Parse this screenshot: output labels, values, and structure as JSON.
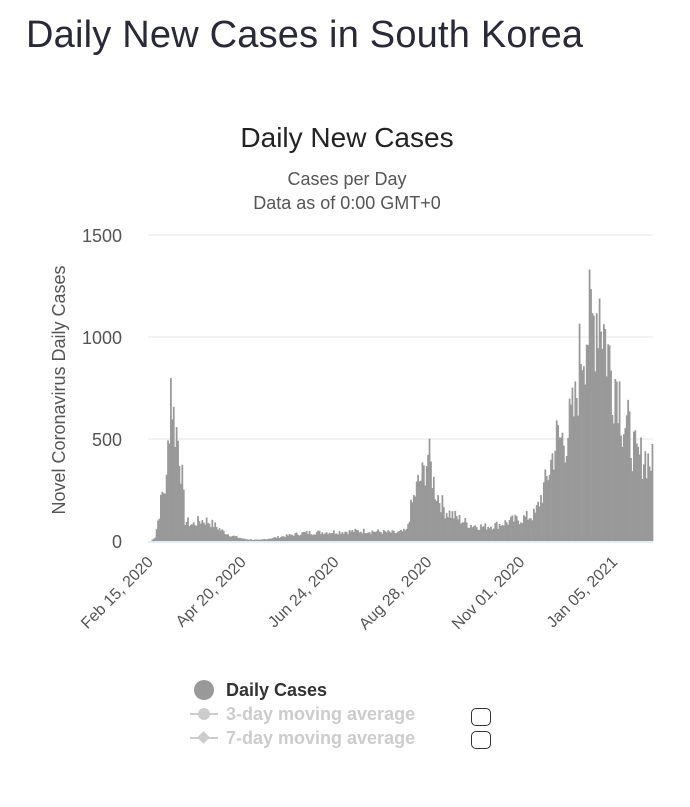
{
  "page": {
    "heading": "Daily New Cases in South Korea"
  },
  "chart_data": {
    "type": "bar",
    "title": "Daily New Cases",
    "subtitle_lines": [
      "Cases per Day",
      "Data as of 0:00 GMT+0"
    ],
    "xlabel": "",
    "ylabel": "Novel Coronavirus Daily Cases",
    "ylim": [
      0,
      1500
    ],
    "yticks": [
      0,
      500,
      1000,
      1500
    ],
    "x_tick_labels": [
      "Feb 15, 2020",
      "Apr 20, 2020",
      "Jun 24, 2020",
      "Aug 28, 2020",
      "Nov 01, 2020",
      "Jan 05, 2021"
    ],
    "x_start": "Feb 15, 2020",
    "x_end": "Jan 31, 2021",
    "grid": true,
    "bar_color": "#999999",
    "legend_position": "bottom",
    "series": [
      {
        "name": "Daily Cases",
        "active": true,
        "keypoints": [
          [
            "Feb 15, 2020",
            0
          ],
          [
            "Feb 18, 2020",
            20
          ],
          [
            "Feb 20, 2020",
            100
          ],
          [
            "Feb 23, 2020",
            230
          ],
          [
            "Feb 26, 2020",
            280
          ],
          [
            "Feb 29, 2020",
            800
          ],
          [
            "Mar 02, 2020",
            600
          ],
          [
            "Mar 04, 2020",
            540
          ],
          [
            "Mar 06, 2020",
            450
          ],
          [
            "Mar 08, 2020",
            300
          ],
          [
            "Mar 10, 2020",
            100
          ],
          [
            "Mar 15, 2020",
            80
          ],
          [
            "Mar 20, 2020",
            100
          ],
          [
            "Mar 25, 2020",
            100
          ],
          [
            "Mar 30, 2020",
            80
          ],
          [
            "Apr 05, 2020",
            50
          ],
          [
            "Apr 10, 2020",
            30
          ],
          [
            "Apr 20, 2020",
            10
          ],
          [
            "May 01, 2020",
            5
          ],
          [
            "May 15, 2020",
            20
          ],
          [
            "Jun 01, 2020",
            40
          ],
          [
            "Jun 24, 2020",
            45
          ],
          [
            "Jul 15, 2020",
            50
          ],
          [
            "Aug 05, 2020",
            40
          ],
          [
            "Aug 12, 2020",
            50
          ],
          [
            "Aug 15, 2020",
            160
          ],
          [
            "Aug 20, 2020",
            280
          ],
          [
            "Aug 24, 2020",
            330
          ],
          [
            "Aug 27, 2020",
            430
          ],
          [
            "Sep 01, 2020",
            250
          ],
          [
            "Sep 08, 2020",
            150
          ],
          [
            "Sep 15, 2020",
            120
          ],
          [
            "Sep 25, 2020",
            80
          ],
          [
            "Oct 05, 2020",
            70
          ],
          [
            "Oct 15, 2020",
            80
          ],
          [
            "Oct 25, 2020",
            100
          ],
          [
            "Nov 01, 2020",
            110
          ],
          [
            "Nov 10, 2020",
            130
          ],
          [
            "Nov 18, 2020",
            300
          ],
          [
            "Nov 25, 2020",
            500
          ],
          [
            "Dec 01, 2020",
            500
          ],
          [
            "Dec 08, 2020",
            650
          ],
          [
            "Dec 12, 2020",
            950
          ],
          [
            "Dec 16, 2020",
            1050
          ],
          [
            "Dec 20, 2020",
            1050
          ],
          [
            "Dec 25, 2020",
            1200
          ],
          [
            "Dec 29, 2020",
            1000
          ],
          [
            "Jan 03, 2021",
            800
          ],
          [
            "Jan 07, 2021",
            800
          ],
          [
            "Jan 10, 2021",
            600
          ],
          [
            "Jan 14, 2021",
            550
          ],
          [
            "Jan 20, 2021",
            400
          ],
          [
            "Jan 25, 2021",
            420
          ],
          [
            "Jan 31, 2021",
            380
          ]
        ]
      },
      {
        "name": "3-day moving average",
        "active": false
      },
      {
        "name": "7-day moving average",
        "active": false
      }
    ]
  }
}
